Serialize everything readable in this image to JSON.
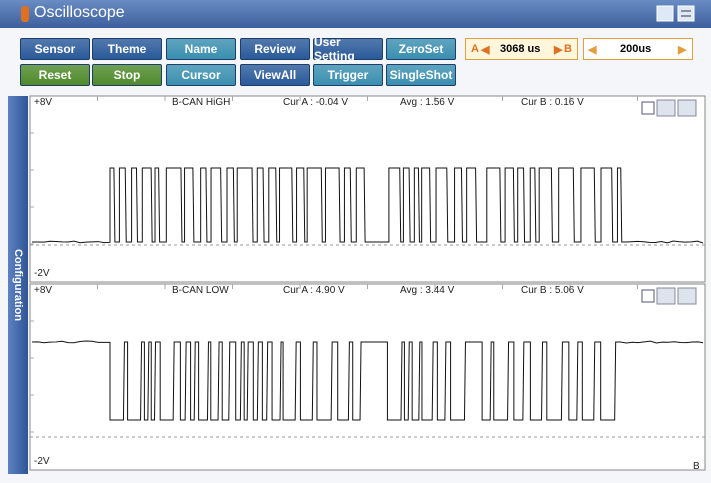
{
  "window": {
    "title": "Oscilloscope"
  },
  "toolbar": {
    "buttons": [
      [
        "Sensor",
        "Theme",
        "Name",
        "Review",
        "User Setting",
        "ZeroSet"
      ],
      [
        "Reset",
        "Stop",
        "Cursor",
        "ViewAll",
        "Trigger",
        "SingleShot"
      ]
    ],
    "cursor_a": "A",
    "cursor_time": "3068 us",
    "cursor_b": "B",
    "time_div": "200us"
  },
  "sidebar": {
    "label": "Configuration"
  },
  "panels": [
    {
      "top_label": "+8V",
      "name": "B-CAN HiGH",
      "cur_a": "Cur A : -0.04 V",
      "avg": "Avg : 1.56 V",
      "cur_b": "Cur B : 0.16 V",
      "bottom_label": "-2V"
    },
    {
      "top_label": "+8V",
      "name": "B-CAN LOW",
      "cur_a": "Cur A : 4.90 V",
      "avg": "Avg : 3.44 V",
      "cur_b": "Cur B : 5.06 V",
      "bottom_label": "-2V"
    }
  ],
  "corner_label": "B"
}
